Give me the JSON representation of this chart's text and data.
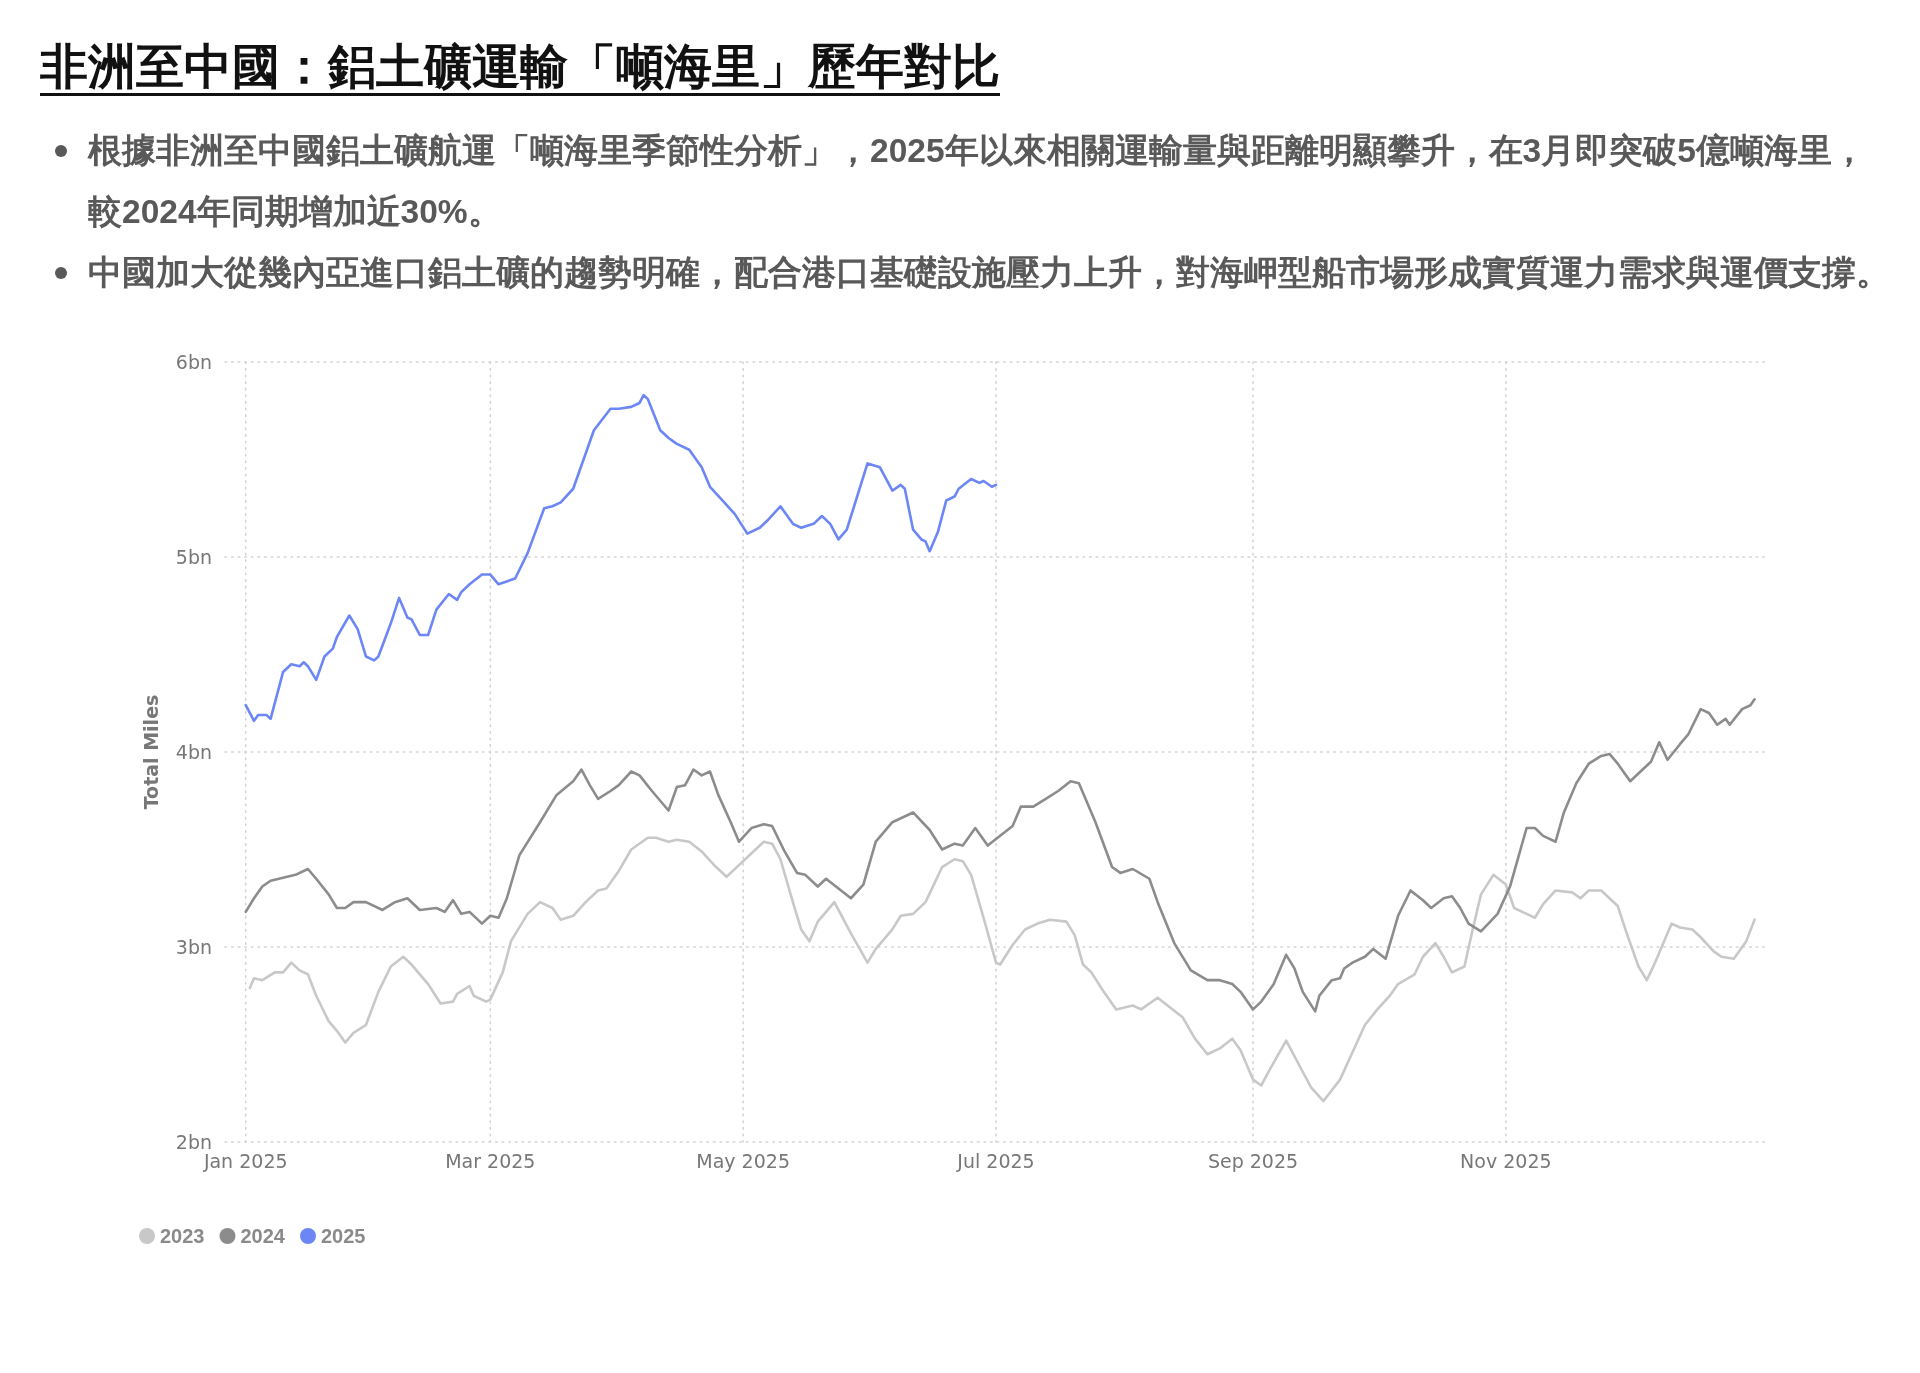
{
  "chart_data": {
    "type": "line",
    "title": "非洲至中國：鋁土礦運輸「噸海里」歷年對比",
    "annotations": [
      "根據非洲至中國鋁土礦航運「噸海里季節性分析」，2025年以來相關運輸量與距離明顯攀升，在3月即突破5億噸海里，較2024年同期增加近30%。",
      "中國加大從幾內亞進口鋁土礦的趨勢明確，配合港口基礎設施壓力上升，對海岬型船市場形成實質運力需求與運價支撐。"
    ],
    "ylabel": "Total Miles",
    "xlim": [
      "2024-12-27",
      "2026-01-03"
    ],
    "xticks": [
      {
        "value": "2025-01-01",
        "label": "Jan 2025"
      },
      {
        "value": "2025-03-01",
        "label": "Mar 2025"
      },
      {
        "value": "2025-05-01",
        "label": "May 2025"
      },
      {
        "value": "2025-07-01",
        "label": "Jul 2025"
      },
      {
        "value": "2025-09-01",
        "label": "Sep 2025"
      },
      {
        "value": "2025-11-01",
        "label": "Nov 2025"
      }
    ],
    "ylim": [
      2,
      6
    ],
    "yticks": [
      {
        "value": 2,
        "label": "2bn"
      },
      {
        "value": 3,
        "label": "3bn"
      },
      {
        "value": 4,
        "label": "4bn"
      },
      {
        "value": 5,
        "label": "5bn"
      },
      {
        "value": 6,
        "label": "6bn"
      }
    ],
    "grid": true,
    "legend": "bottom left",
    "series": [
      {
        "name": "2023",
        "color": "#c8c8c8",
        "x": [
          "2025-01-02",
          "2025-01-03",
          "2025-01-05",
          "2025-01-08",
          "2025-01-10",
          "2025-01-12",
          "2025-01-14",
          "2025-01-16",
          "2025-01-18",
          "2025-01-21",
          "2025-01-23",
          "2025-01-25",
          "2025-01-27",
          "2025-01-30",
          "2025-02-02",
          "2025-02-05",
          "2025-02-08",
          "2025-02-10",
          "2025-02-14",
          "2025-02-17",
          "2025-02-20",
          "2025-02-21",
          "2025-02-24",
          "2025-02-25",
          "2025-02-28",
          "2025-03-01",
          "2025-03-04",
          "2025-03-06",
          "2025-03-10",
          "2025-03-13",
          "2025-03-16",
          "2025-03-18",
          "2025-03-21",
          "2025-03-24",
          "2025-03-27",
          "2025-03-29",
          "2025-04-01",
          "2025-04-04",
          "2025-04-08",
          "2025-04-10",
          "2025-04-13",
          "2025-04-15",
          "2025-04-18",
          "2025-04-21",
          "2025-04-24",
          "2025-04-27",
          "2025-04-30",
          "2025-05-04",
          "2025-05-06",
          "2025-05-08",
          "2025-05-10",
          "2025-05-13",
          "2025-05-15",
          "2025-05-17",
          "2025-05-19",
          "2025-05-23",
          "2025-05-24",
          "2025-05-27",
          "2025-05-31",
          "2025-06-02",
          "2025-06-06",
          "2025-06-08",
          "2025-06-11",
          "2025-06-14",
          "2025-06-16",
          "2025-06-18",
          "2025-06-21",
          "2025-06-23",
          "2025-06-25",
          "2025-06-28",
          "2025-07-01",
          "2025-07-02",
          "2025-07-05",
          "2025-07-08",
          "2025-07-11",
          "2025-07-14",
          "2025-07-18",
          "2025-07-20",
          "2025-07-22",
          "2025-07-24",
          "2025-07-27",
          "2025-07-30",
          "2025-08-03",
          "2025-08-05",
          "2025-08-09",
          "2025-08-12",
          "2025-08-15",
          "2025-08-18",
          "2025-08-21",
          "2025-08-24",
          "2025-08-27",
          "2025-08-29",
          "2025-09-01",
          "2025-09-03",
          "2025-09-05",
          "2025-09-09",
          "2025-09-12",
          "2025-09-15",
          "2025-09-18",
          "2025-09-22",
          "2025-09-25",
          "2025-09-28",
          "2025-10-01",
          "2025-10-04",
          "2025-10-06",
          "2025-10-10",
          "2025-10-12",
          "2025-10-15",
          "2025-10-17",
          "2025-10-19",
          "2025-10-22",
          "2025-10-24",
          "2025-10-26",
          "2025-10-29",
          "2025-11-01",
          "2025-11-03",
          "2025-11-08",
          "2025-11-10",
          "2025-11-13",
          "2025-11-17",
          "2025-11-19",
          "2025-11-21",
          "2025-11-24",
          "2025-11-28",
          "2025-11-30",
          "2025-12-03",
          "2025-12-05",
          "2025-12-07",
          "2025-12-11",
          "2025-12-13",
          "2025-12-16",
          "2025-12-18",
          "2025-12-21",
          "2025-12-23",
          "2025-12-26",
          "2025-12-29",
          "2025-12-31"
        ],
        "values": [
          2.79,
          2.84,
          2.83,
          2.87,
          2.87,
          2.92,
          2.88,
          2.86,
          2.75,
          2.62,
          2.57,
          2.51,
          2.56,
          2.6,
          2.77,
          2.9,
          2.95,
          2.91,
          2.81,
          2.71,
          2.72,
          2.76,
          2.8,
          2.75,
          2.72,
          2.73,
          2.87,
          3.03,
          3.17,
          3.23,
          3.2,
          3.14,
          3.16,
          3.23,
          3.29,
          3.3,
          3.39,
          3.5,
          3.56,
          3.56,
          3.54,
          3.55,
          3.54,
          3.49,
          3.42,
          3.36,
          3.42,
          3.5,
          3.54,
          3.53,
          3.45,
          3.23,
          3.09,
          3.03,
          3.13,
          3.23,
          3.19,
          3.07,
          2.92,
          2.99,
          3.09,
          3.16,
          3.17,
          3.23,
          3.32,
          3.41,
          3.45,
          3.44,
          3.37,
          3.15,
          2.92,
          2.91,
          3.01,
          3.09,
          3.12,
          3.14,
          3.13,
          3.06,
          2.91,
          2.87,
          2.77,
          2.68,
          2.7,
          2.68,
          2.74,
          2.69,
          2.64,
          2.53,
          2.45,
          2.48,
          2.53,
          2.47,
          2.32,
          2.29,
          2.37,
          2.52,
          2.4,
          2.28,
          2.21,
          2.32,
          2.46,
          2.6,
          2.68,
          2.75,
          2.81,
          2.86,
          2.95,
          3.02,
          2.95,
          2.87,
          2.9,
          3.09,
          3.27,
          3.37,
          3.32,
          3.2,
          3.15,
          3.22,
          3.29,
          3.28,
          3.25,
          3.29,
          3.29,
          3.21,
          3.08,
          2.9,
          2.83,
          2.92,
          3.12,
          3.1,
          3.09,
          3.05,
          2.98,
          2.95,
          2.94,
          3.03,
          3.14
        ]
      },
      {
        "name": "2024",
        "color": "#8c8c8c",
        "x": [
          "2025-01-01",
          "2025-01-03",
          "2025-01-05",
          "2025-01-07",
          "2025-01-09",
          "2025-01-11",
          "2025-01-13",
          "2025-01-16",
          "2025-01-18",
          "2025-01-21",
          "2025-01-23",
          "2025-01-25",
          "2025-01-27",
          "2025-01-30",
          "2025-02-03",
          "2025-02-06",
          "2025-02-09",
          "2025-02-12",
          "2025-02-16",
          "2025-02-18",
          "2025-02-20",
          "2025-02-22",
          "2025-02-24",
          "2025-02-27",
          "2025-03-01",
          "2025-03-03",
          "2025-03-05",
          "2025-03-08",
          "2025-03-13",
          "2025-03-17",
          "2025-03-21",
          "2025-03-23",
          "2025-03-25",
          "2025-03-27",
          "2025-03-30",
          "2025-04-01",
          "2025-04-04",
          "2025-04-06",
          "2025-04-09",
          "2025-04-11",
          "2025-04-13",
          "2025-04-15",
          "2025-04-17",
          "2025-04-19",
          "2025-04-21",
          "2025-04-23",
          "2025-04-25",
          "2025-04-28",
          "2025-04-30",
          "2025-05-03",
          "2025-05-06",
          "2025-05-08",
          "2025-05-11",
          "2025-05-14",
          "2025-05-16",
          "2025-05-19",
          "2025-05-21",
          "2025-05-24",
          "2025-05-27",
          "2025-05-30",
          "2025-06-02",
          "2025-06-06",
          "2025-06-11",
          "2025-06-15",
          "2025-06-18",
          "2025-06-21",
          "2025-06-23",
          "2025-06-26",
          "2025-06-29",
          "2025-07-02",
          "2025-07-05",
          "2025-07-07",
          "2025-07-10",
          "2025-07-13",
          "2025-07-16",
          "2025-07-19",
          "2025-07-21",
          "2025-07-25",
          "2025-07-29",
          "2025-07-31",
          "2025-08-03",
          "2025-08-07",
          "2025-08-09",
          "2025-08-13",
          "2025-08-17",
          "2025-08-21",
          "2025-08-24",
          "2025-08-27",
          "2025-08-29",
          "2025-09-01",
          "2025-09-03",
          "2025-09-06",
          "2025-09-09",
          "2025-09-11",
          "2025-09-13",
          "2025-09-16",
          "2025-09-17",
          "2025-09-20",
          "2025-09-22",
          "2025-09-23",
          "2025-09-25",
          "2025-09-28",
          "2025-09-30",
          "2025-10-03",
          "2025-10-06",
          "2025-10-09",
          "2025-10-12",
          "2025-10-14",
          "2025-10-17",
          "2025-10-19",
          "2025-10-21",
          "2025-10-23",
          "2025-10-26",
          "2025-10-30",
          "2025-11-02",
          "2025-11-04",
          "2025-11-06",
          "2025-11-08",
          "2025-11-10",
          "2025-11-13",
          "2025-11-15",
          "2025-11-18",
          "2025-11-21",
          "2025-11-24",
          "2025-11-26",
          "2025-11-28",
          "2025-12-01",
          "2025-12-04",
          "2025-12-06",
          "2025-12-08",
          "2025-12-10",
          "2025-12-13",
          "2025-12-15",
          "2025-12-18",
          "2025-12-20",
          "2025-12-22",
          "2025-12-24",
          "2025-12-25",
          "2025-12-28",
          "2025-12-30",
          "2025-12-31"
        ],
        "values": [
          3.18,
          3.25,
          3.31,
          3.34,
          3.35,
          3.36,
          3.37,
          3.4,
          3.35,
          3.27,
          3.2,
          3.2,
          3.23,
          3.23,
          3.19,
          3.23,
          3.25,
          3.19,
          3.2,
          3.18,
          3.24,
          3.17,
          3.18,
          3.12,
          3.16,
          3.15,
          3.25,
          3.47,
          3.64,
          3.78,
          3.85,
          3.91,
          3.83,
          3.76,
          3.8,
          3.83,
          3.9,
          3.88,
          3.8,
          3.75,
          3.7,
          3.82,
          3.83,
          3.91,
          3.88,
          3.9,
          3.78,
          3.64,
          3.54,
          3.61,
          3.63,
          3.62,
          3.49,
          3.38,
          3.37,
          3.31,
          3.35,
          3.3,
          3.25,
          3.32,
          3.54,
          3.64,
          3.69,
          3.6,
          3.5,
          3.53,
          3.52,
          3.61,
          3.52,
          3.57,
          3.62,
          3.72,
          3.72,
          3.76,
          3.8,
          3.85,
          3.84,
          3.64,
          3.41,
          3.38,
          3.4,
          3.35,
          3.23,
          3.02,
          2.88,
          2.83,
          2.83,
          2.81,
          2.77,
          2.68,
          2.72,
          2.81,
          2.96,
          2.89,
          2.77,
          2.67,
          2.75,
          2.83,
          2.84,
          2.89,
          2.92,
          2.95,
          2.99,
          2.94,
          3.16,
          3.29,
          3.24,
          3.2,
          3.25,
          3.26,
          3.2,
          3.12,
          3.08,
          3.17,
          3.31,
          3.46,
          3.61,
          3.61,
          3.57,
          3.54,
          3.69,
          3.84,
          3.94,
          3.98,
          3.99,
          3.94,
          3.85,
          3.91,
          3.95,
          4.05,
          3.96,
          4.04,
          4.09,
          4.22,
          4.2,
          4.14,
          4.17,
          4.14,
          4.22,
          4.24,
          4.27
        ]
      },
      {
        "name": "2025",
        "color": "#6c87f5",
        "x": [
          "2025-01-01",
          "2025-01-03",
          "2025-01-04",
          "2025-01-06",
          "2025-01-07",
          "2025-01-10",
          "2025-01-12",
          "2025-01-14",
          "2025-01-15",
          "2025-01-16",
          "2025-01-18",
          "2025-01-20",
          "2025-01-22",
          "2025-01-23",
          "2025-01-26",
          "2025-01-28",
          "2025-01-30",
          "2025-02-01",
          "2025-02-02",
          "2025-02-05",
          "2025-02-07",
          "2025-02-09",
          "2025-02-10",
          "2025-02-12",
          "2025-02-14",
          "2025-02-16",
          "2025-02-19",
          "2025-02-21",
          "2025-02-22",
          "2025-02-24",
          "2025-02-27",
          "2025-03-01",
          "2025-03-03",
          "2025-03-07",
          "2025-03-10",
          "2025-03-14",
          "2025-03-16",
          "2025-03-18",
          "2025-03-21",
          "2025-03-26",
          "2025-03-30",
          "2025-04-01",
          "2025-04-04",
          "2025-04-06",
          "2025-04-07",
          "2025-04-08",
          "2025-04-11",
          "2025-04-13",
          "2025-04-15",
          "2025-04-18",
          "2025-04-21",
          "2025-04-23",
          "2025-04-26",
          "2025-04-29",
          "2025-05-02",
          "2025-05-05",
          "2025-05-07",
          "2025-05-10",
          "2025-05-13",
          "2025-05-15",
          "2025-05-18",
          "2025-05-20",
          "2025-05-22",
          "2025-05-24",
          "2025-05-26",
          "2025-05-31",
          "2025-06-03",
          "2025-06-06",
          "2025-06-08",
          "2025-06-09",
          "2025-06-11",
          "2025-06-13",
          "2025-06-14",
          "2025-06-15",
          "2025-06-17",
          "2025-06-19",
          "2025-06-21",
          "2025-06-22",
          "2025-06-25",
          "2025-06-27",
          "2025-06-28",
          "2025-06-30",
          "2025-07-01"
        ],
        "values": [
          4.24,
          4.16,
          4.19,
          4.19,
          4.17,
          4.41,
          4.45,
          4.44,
          4.46,
          4.44,
          4.37,
          4.49,
          4.53,
          4.59,
          4.7,
          4.63,
          4.49,
          4.47,
          4.49,
          4.66,
          4.79,
          4.69,
          4.68,
          4.6,
          4.6,
          4.73,
          4.81,
          4.78,
          4.82,
          4.86,
          4.91,
          4.91,
          4.86,
          4.89,
          5.02,
          5.25,
          5.26,
          5.28,
          5.35,
          5.65,
          5.76,
          5.76,
          5.77,
          5.79,
          5.83,
          5.81,
          5.65,
          5.61,
          5.58,
          5.55,
          5.46,
          5.36,
          5.29,
          5.22,
          5.12,
          5.15,
          5.19,
          5.26,
          5.17,
          5.15,
          5.17,
          5.21,
          5.17,
          5.09,
          5.14,
          5.48,
          5.46,
          5.34,
          5.37,
          5.35,
          5.14,
          5.09,
          5.08,
          5.03,
          5.13,
          5.29,
          5.31,
          5.35,
          5.4,
          5.38,
          5.39,
          5.36,
          5.37
        ]
      }
    ]
  }
}
